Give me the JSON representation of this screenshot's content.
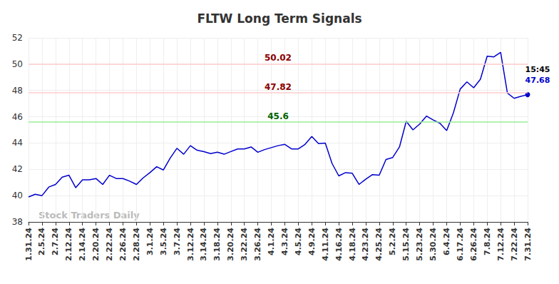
{
  "chart_data": {
    "type": "line",
    "title": "FLTW Long Term Signals",
    "watermark": "Stock Traders Daily",
    "categories": [
      "1.31.24",
      null,
      "2.5.24",
      null,
      "2.7.24",
      null,
      "2.12.24",
      null,
      "2.14.24",
      null,
      "2.20.24",
      null,
      "2.22.24",
      null,
      "2.26.24",
      null,
      "2.28.24",
      null,
      "3.1.24",
      null,
      "3.5.24",
      null,
      "3.7.24",
      null,
      "3.12.24",
      null,
      "3.14.24",
      null,
      "3.18.24",
      null,
      "3.20.24",
      null,
      "3.22.24",
      null,
      "3.26.24",
      null,
      "4.1.24",
      null,
      "4.3.24",
      null,
      "4.5.24",
      null,
      "4.9.24",
      null,
      "4.11.24",
      null,
      "4.16.24",
      null,
      "4.18.24",
      null,
      "4.23.24",
      null,
      "4.25.24",
      null,
      "5.2.24",
      null,
      "5.15.24",
      null,
      "5.23.24",
      null,
      "5.30.24",
      null,
      "6.4.24",
      null,
      "6.17.24",
      null,
      "6.26.24",
      null,
      "7.8.24",
      null,
      "7.12.24",
      null,
      "7.22.24",
      null,
      "7.31.24"
    ],
    "values": [
      39.9,
      40.1,
      40.0,
      40.65,
      40.85,
      41.4,
      41.55,
      40.6,
      41.2,
      41.2,
      41.3,
      40.85,
      41.55,
      41.3,
      41.3,
      41.1,
      40.85,
      41.35,
      41.75,
      42.2,
      41.95,
      42.85,
      43.6,
      43.15,
      43.8,
      43.45,
      43.35,
      43.2,
      43.3,
      43.15,
      43.35,
      43.55,
      43.55,
      43.7,
      43.3,
      43.5,
      43.65,
      43.8,
      43.9,
      43.55,
      43.55,
      43.9,
      44.5,
      43.95,
      44.0,
      42.45,
      41.5,
      41.75,
      41.7,
      40.85,
      41.25,
      41.6,
      41.55,
      42.75,
      42.9,
      43.7,
      45.65,
      45.0,
      45.45,
      46.05,
      45.75,
      45.5,
      44.95,
      46.3,
      48.1,
      48.65,
      48.2,
      48.85,
      50.6,
      50.55,
      50.9,
      47.8,
      47.4,
      47.55,
      47.68
    ],
    "color": "#0000cc",
    "last_point": {
      "time": "15:45",
      "value_label": "47.68"
    },
    "annotations": [
      {
        "value": 50.02,
        "label": "50.02",
        "color": "#ffcccc",
        "text_color": "#8b0000"
      },
      {
        "value": 47.82,
        "label": "47.82",
        "color": "#ffcccc",
        "text_color": "#8b0000"
      },
      {
        "value": 45.6,
        "label": "45.6",
        "color": "#99ee99",
        "text_color": "#006400"
      }
    ],
    "ylim": [
      38,
      52
    ],
    "yticks": [
      38,
      40,
      42,
      44,
      46,
      48,
      50,
      52
    ],
    "grid": true
  }
}
